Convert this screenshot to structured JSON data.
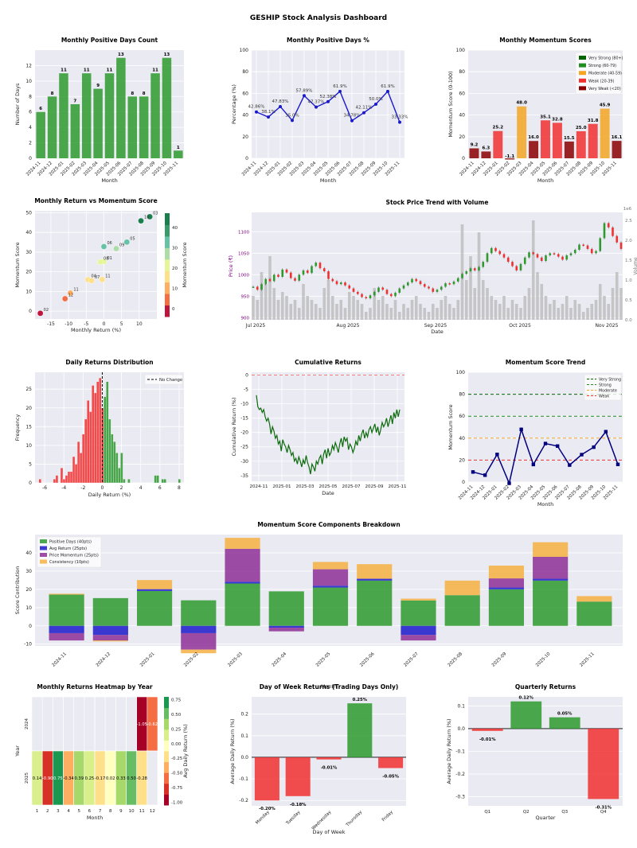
{
  "title": "GESHIP Stock Analysis Dashboard",
  "colors": {
    "panel_bg": "#eaeaf2",
    "green": "#2e9a2e",
    "green_dark": "#1a7a1a",
    "red": "#f23030",
    "orange": "#f5a623",
    "dark_red": "#8b0000",
    "navy": "#00007f",
    "blue": "#1a1acc",
    "purple": "#8e2f96",
    "gold": "#f5b041",
    "orange2": "#e67e22",
    "gray_volume": "#bbbbbb"
  },
  "chart_data": [
    {
      "id": "positive_days_count",
      "type": "bar",
      "title": "Monthly Positive Days Count",
      "xlabel": "Month",
      "ylabel": "Number of Days",
      "categories": [
        "2024-11",
        "2024-12",
        "2025-01",
        "2025-02",
        "2025-03",
        "2025-04",
        "2025-05",
        "2025-06",
        "2025-07",
        "2025-08",
        "2025-09",
        "2025-10",
        "2025-11"
      ],
      "values": [
        6,
        8,
        11,
        7,
        11,
        9,
        11,
        13,
        8,
        8,
        11,
        13,
        1
      ],
      "ylim": [
        0,
        14
      ],
      "yticks": [
        0,
        2,
        4,
        6,
        8,
        10,
        12
      ]
    },
    {
      "id": "positive_days_pct",
      "type": "line",
      "title": "Monthly Positive Days %",
      "xlabel": "Month",
      "ylabel": "Percentage (%)",
      "categories": [
        "2024-11",
        "2024-12",
        "2025-01",
        "2025-02",
        "2025-03",
        "2025-04",
        "2025-05",
        "2025-06",
        "2025-07",
        "2025-08",
        "2025-09",
        "2025-10",
        "2025-11"
      ],
      "values": [
        42.86,
        38.1,
        47.83,
        35.0,
        57.89,
        47.37,
        52.38,
        61.9,
        34.78,
        42.11,
        50.0,
        61.9,
        33.33
      ],
      "labels": [
        "42.86%",
        "38.1%",
        "47.83%",
        "35.0%",
        "57.89%",
        "47.37%",
        "52.38%",
        "61.9%",
        "34.78%",
        "42.11%",
        "50.0%",
        "61.9%",
        "33.33%"
      ],
      "ylim": [
        0,
        100
      ],
      "yticks": [
        0,
        20,
        40,
        60,
        80,
        100
      ]
    },
    {
      "id": "momentum_scores",
      "type": "bar",
      "title": "Monthly Momentum Scores",
      "xlabel": "Month",
      "ylabel": "Momentum Score (0-100)",
      "categories": [
        "2024-11",
        "2024-12",
        "2025-01",
        "2025-02",
        "2025-03",
        "2025-04",
        "2025-05",
        "2025-06",
        "2025-07",
        "2025-08",
        "2025-09",
        "2025-10",
        "2025-11"
      ],
      "values": [
        9.2,
        6.3,
        25.2,
        -1.1,
        48.0,
        16.0,
        35.1,
        32.8,
        15.5,
        25.0,
        31.8,
        45.9,
        16.1
      ],
      "labels": [
        "9.2",
        "6.3",
        "25.2",
        "-1.1",
        "48.0",
        "16.0",
        "35.1",
        "32.8",
        "15.5",
        "25.0",
        "31.8",
        "45.9",
        "16.1"
      ],
      "ylim": [
        0,
        100
      ],
      "yticks": [
        0,
        20,
        40,
        60,
        80,
        100
      ],
      "legend": [
        "Very Strong (80+)",
        "Strong (60-79)",
        "Moderate (40-59)",
        "Weak (20-39)",
        "Very Weak (<20)"
      ],
      "legend_position": "top-right"
    },
    {
      "id": "return_vs_momentum",
      "type": "scatter",
      "title": "Monthly Return vs Momentum Score",
      "xlabel": "Monthly Return (%)",
      "ylabel": "Momentum Score",
      "colorbar_label": "Momentum Score",
      "colorbar_ticks": [
        0,
        10,
        20,
        30,
        40
      ],
      "points": [
        {
          "label": "11",
          "x": -9.5,
          "y": 9.2
        },
        {
          "label": "12",
          "x": -11,
          "y": 6.3
        },
        {
          "label": "01",
          "x": 0,
          "y": 25.2
        },
        {
          "label": "02",
          "x": -18,
          "y": -1.1
        },
        {
          "label": "03",
          "x": 13,
          "y": 48.0
        },
        {
          "label": "04",
          "x": -4.5,
          "y": 16.0
        },
        {
          "label": "05",
          "x": 6.5,
          "y": 35.1
        },
        {
          "label": "06",
          "x": 0,
          "y": 32.8
        },
        {
          "label": "07",
          "x": -3.5,
          "y": 15.5
        },
        {
          "label": "08",
          "x": -1,
          "y": 25.0
        },
        {
          "label": "09",
          "x": 3.5,
          "y": 31.8
        },
        {
          "label": "10",
          "x": 10.5,
          "y": 45.9
        },
        {
          "label": "11",
          "x": -0.5,
          "y": 16.1
        }
      ],
      "xticks": [
        -15,
        -10,
        -5,
        0,
        5,
        10
      ],
      "yticks": [
        0,
        10,
        20,
        30,
        40,
        50
      ],
      "xlim": [
        -19.5,
        15
      ],
      "ylim": [
        -4,
        51
      ]
    },
    {
      "id": "price_trend",
      "type": "line",
      "title": "Stock Price Trend with Volume",
      "xlabel": "Date",
      "ylabel": "Price (₹)",
      "y2label": "Volume",
      "y2_multiplier": "1e6",
      "xticks": [
        "Jul 2025",
        "Aug 2025",
        "Sep 2025",
        "Oct 2025",
        "Nov 2025"
      ],
      "yticks": [
        900,
        950,
        1000,
        1050,
        1100
      ],
      "y2ticks": [
        "0.0",
        "0.5",
        "1.0",
        "1.5",
        "2.0",
        "2.5"
      ],
      "ylim": [
        895,
        1145
      ],
      "close": [
        972,
        965,
        978,
        990,
        985,
        1000,
        995,
        1012,
        1005,
        992,
        986,
        1000,
        1010,
        1004,
        1020,
        1028,
        1015,
        1008,
        990,
        985,
        978,
        982,
        975,
        968,
        960,
        955,
        948,
        945,
        952,
        960,
        970,
        965,
        955,
        950,
        958,
        968,
        975,
        982,
        990,
        985,
        978,
        972,
        968,
        960,
        965,
        972,
        980,
        978,
        984,
        992,
        1002,
        1008,
        1015,
        1010,
        1018,
        1030,
        1050,
        1062,
        1055,
        1048,
        1040,
        1030,
        1020,
        1010,
        1025,
        1040,
        1052,
        1048,
        1040,
        1032,
        1045,
        1050,
        1048,
        1042,
        1035,
        1045,
        1050,
        1058,
        1070,
        1068,
        1060,
        1050,
        1055,
        1085,
        1120,
        1110,
        1090,
        1075,
        1060
      ],
      "volume": [
        0.6,
        0.5,
        1.2,
        0.9,
        1.6,
        0.8,
        0.5,
        0.7,
        0.6,
        0.4,
        0.5,
        0.3,
        0.9,
        0.6,
        0.5,
        0.4,
        0.3,
        0.8,
        1.0,
        0.6,
        0.4,
        0.5,
        0.3,
        0.7,
        0.6,
        0.5,
        0.4,
        0.2,
        0.3,
        0.8,
        0.5,
        0.6,
        0.4,
        0.3,
        0.5,
        0.2,
        0.4,
        0.3,
        0.5,
        0.6,
        0.4,
        0.3,
        0.2,
        0.4,
        0.3,
        0.5,
        0.6,
        0.4,
        0.3,
        0.5,
        2.4,
        1.0,
        1.6,
        0.8,
        2.2,
        1.0,
        0.8,
        0.6,
        0.5,
        0.4,
        0.6,
        0.3,
        0.5,
        0.4,
        0.3,
        0.6,
        0.8,
        2.5,
        1.2,
        0.9,
        0.6,
        0.4,
        0.5,
        0.3,
        0.4,
        0.6,
        0.3,
        0.5,
        0.4,
        0.2,
        0.3,
        0.4,
        0.5,
        0.9,
        0.6,
        0.4,
        0.8,
        1.2,
        0.8
      ]
    },
    {
      "id": "daily_returns_dist",
      "type": "bar",
      "title": "Daily Returns Distribution",
      "xlabel": "Daily Return (%)",
      "ylabel": "Frequency",
      "legend": [
        "No Change"
      ],
      "legend_position": "top-right",
      "bin_start": -6.6,
      "bin_width": 0.25,
      "counts": [
        1,
        0,
        0,
        0,
        0,
        0,
        1,
        2,
        0,
        4,
        1,
        2,
        3,
        3,
        7,
        5,
        11,
        8,
        13,
        17,
        22,
        19,
        26,
        24,
        27,
        28,
        20,
        23,
        27,
        17,
        13,
        11,
        8,
        4,
        8,
        1,
        0,
        1,
        0,
        0,
        0,
        0,
        0,
        0,
        0,
        0,
        0,
        0,
        2,
        2,
        0,
        1,
        1,
        0,
        0,
        0,
        0,
        0,
        1
      ],
      "xticks": [
        -6,
        -4,
        -2,
        0,
        2,
        4,
        6,
        8
      ],
      "yticks": [
        0,
        5,
        10,
        15,
        20,
        25
      ],
      "xlim": [
        -7,
        8.5
      ],
      "ylim": [
        0,
        29.5
      ]
    },
    {
      "id": "cumulative_returns",
      "type": "line",
      "title": "Cumulative Returns",
      "xlabel": "Date",
      "ylabel": "Cumulative Return (%)",
      "xticks": [
        "2024-11",
        "2025-01",
        "2025-03",
        "2025-05",
        "2025-07",
        "2025-09",
        "2025-11"
      ],
      "yticks": [
        0,
        -5,
        -10,
        -15,
        -20,
        -25,
        -30,
        -35
      ],
      "ylim": [
        -37,
        1
      ],
      "values": [
        -7,
        -11,
        -12,
        -11.5,
        -13,
        -12,
        -14.5,
        -16,
        -15,
        -17,
        -20.5,
        -18,
        -19.5,
        -22,
        -21,
        -24,
        -23,
        -26.5,
        -22.5,
        -24,
        -25,
        -27,
        -24.5,
        -26,
        -28,
        -27,
        -30,
        -29,
        -31,
        -28.5,
        -30,
        -32,
        -29.5,
        -31,
        -28,
        -30.5,
        -32,
        -34.5,
        -31,
        -32,
        -33.5,
        -30,
        -31,
        -29,
        -28,
        -31,
        -27.5,
        -26,
        -29,
        -25.5,
        -28,
        -27,
        -24.5,
        -26,
        -23.5,
        -25,
        -27,
        -24,
        -22,
        -25,
        -21.5,
        -23,
        -22,
        -26,
        -24,
        -25,
        -27,
        -25.5,
        -23,
        -24.5,
        -21,
        -23,
        -20.5,
        -19,
        -22,
        -20,
        -21.5,
        -19,
        -18,
        -20,
        -18.5,
        -17,
        -20,
        -18,
        -21,
        -19,
        -16.5,
        -18,
        -17,
        -15,
        -18,
        -16,
        -14,
        -17,
        -13,
        -15,
        -12,
        -14.5,
        -12
      ]
    },
    {
      "id": "momentum_trend",
      "type": "line",
      "title": "Momentum Score Trend",
      "xlabel": "Month",
      "ylabel": "Momentum Score",
      "categories": [
        "2024-11",
        "2024-12",
        "2025-01",
        "2025-02",
        "2025-03",
        "2025-04",
        "2025-05",
        "2025-06",
        "2025-07",
        "2025-08",
        "2025-09",
        "2025-10",
        "2025-11"
      ],
      "values": [
        9.2,
        6.3,
        25.2,
        -1.1,
        48.0,
        16.0,
        35.1,
        32.8,
        15.5,
        25.0,
        31.8,
        45.9,
        16.1
      ],
      "thresholds": [
        {
          "name": "Very Strong",
          "value": 80
        },
        {
          "name": "Strong",
          "value": 60
        },
        {
          "name": "Moderate",
          "value": 40
        },
        {
          "name": "Weak",
          "value": 20
        }
      ],
      "legend_position": "top-right",
      "ylim": [
        0,
        100
      ],
      "yticks": [
        0,
        20,
        40,
        60,
        80,
        100
      ]
    },
    {
      "id": "components_breakdown",
      "type": "bar",
      "title": "Momentum Score Components Breakdown",
      "xlabel": "Month",
      "ylabel": "Score Contribution",
      "categories": [
        "2024-11",
        "2024-12",
        "2025-01",
        "2025-02",
        "2025-03",
        "2025-04",
        "2025-05",
        "2025-06",
        "2025-07",
        "2025-08",
        "2025-09",
        "2025-10",
        "2025-11"
      ],
      "series": [
        {
          "name": "Positive Days (40pts)",
          "values": [
            17.1,
            15.2,
            19.1,
            14.0,
            23.2,
            18.9,
            21.0,
            24.8,
            13.9,
            16.8,
            20.0,
            24.8,
            13.3
          ]
        },
        {
          "name": "Avg Return (25pts)",
          "values": [
            -4,
            -5,
            1,
            -4,
            1,
            -1,
            1,
            1,
            -5,
            0,
            1,
            1,
            0
          ]
        },
        {
          "name": "Price Momentum (25pts)",
          "values": [
            -4,
            -3,
            0,
            -9,
            18,
            -2,
            9,
            0,
            -3,
            0,
            5,
            12,
            0
          ]
        },
        {
          "name": "Consistency (10pts)",
          "values": [
            0.5,
            -0.5,
            5,
            -2,
            6,
            0,
            4,
            8,
            1,
            8,
            7,
            8,
            3
          ]
        }
      ],
      "legend_position": "top-left",
      "ylim": [
        -11,
        50
      ],
      "yticks": [
        -10,
        0,
        10,
        20,
        30,
        40
      ]
    },
    {
      "id": "returns_heatmap",
      "type": "heatmap",
      "title": "Monthly Returns Heatmap by Year",
      "xlabel": "Month",
      "ylabel": "Year",
      "colorbar_label": "Avg Daily Return (%)",
      "colorbar_ticks": [
        "0.75",
        "0.50",
        "0.25",
        "0.00",
        "-0.25",
        "-0.50",
        "-0.75",
        "-1.00"
      ],
      "rows": [
        "2024",
        "2025"
      ],
      "columns": [
        "1",
        "2",
        "3",
        "4",
        "5",
        "6",
        "7",
        "8",
        "9",
        "10",
        "11",
        "12"
      ],
      "values": [
        [
          null,
          null,
          null,
          null,
          null,
          null,
          null,
          null,
          null,
          null,
          -1.05,
          -0.62
        ],
        [
          0.14,
          -0.9,
          0.75,
          -0.34,
          0.39,
          0.25,
          -0.17,
          0.02,
          0.33,
          0.5,
          -0.28,
          null
        ]
      ],
      "labels": [
        [
          "",
          "",
          "",
          "",
          "",
          "",
          "",
          "",
          "",
          "",
          "-1.05",
          "-0.62"
        ],
        [
          "0.14",
          "-0.90",
          "0.75",
          "-0.34",
          "0.39",
          "0.25",
          "-0.17",
          "0.02",
          "0.33",
          "0.50",
          "-0.28",
          ""
        ]
      ]
    },
    {
      "id": "day_of_week",
      "type": "bar",
      "title": "Day of Week Returns (Trading Days Only)",
      "xlabel": "Day of Week",
      "ylabel": "Average Daily Return (%)",
      "categories": [
        "Monday",
        "Tuesday",
        "Wednesday",
        "Thursday",
        "Friday"
      ],
      "values": [
        -0.2,
        -0.18,
        -0.01,
        0.25,
        -0.05
      ],
      "labels": [
        "-0.20%",
        "-0.18%",
        "-0.01%",
        "0.25%",
        "-0.05%"
      ],
      "ylim": [
        -0.225,
        0.28
      ],
      "yticks": [
        -0.2,
        -0.1,
        0.0,
        0.1,
        0.2
      ],
      "ytick_labels": [
        "-0.2",
        "-0.1",
        "0.0",
        "0.1",
        "0.2"
      ]
    },
    {
      "id": "quarterly_returns",
      "type": "bar",
      "title": "Quarterly Returns",
      "xlabel": "Quarter",
      "ylabel": "Average Daily Return (%)",
      "categories": [
        "Q1",
        "Q2",
        "Q3",
        "Q4"
      ],
      "values": [
        -0.01,
        0.12,
        0.05,
        -0.31
      ],
      "labels": [
        "-0.01%",
        "0.12%",
        "0.05%",
        "-0.31%"
      ],
      "ylim": [
        -0.34,
        0.14
      ],
      "yticks": [
        -0.3,
        -0.2,
        -0.1,
        0.0,
        0.1
      ],
      "ytick_labels": [
        "-0.3",
        "-0.2",
        "-0.1",
        "0.0",
        "0.1"
      ]
    }
  ]
}
